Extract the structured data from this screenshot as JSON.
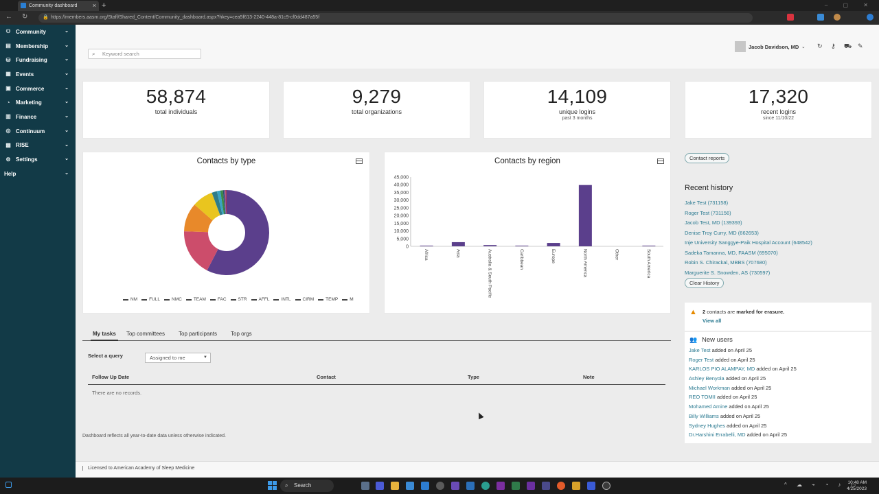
{
  "browser": {
    "tab_title": "Community dashboard",
    "url": "https://members.aasm.org/Staff/Shared_Content/Community_dashboard.aspx?hkey=cea5f613-2240-448a-81c9-cf0dd487a55f"
  },
  "sidebar": {
    "items": [
      {
        "label": "Community",
        "icon": "community-icon"
      },
      {
        "label": "Membership",
        "icon": "membership-icon"
      },
      {
        "label": "Fundraising",
        "icon": "fundraising-icon"
      },
      {
        "label": "Events",
        "icon": "events-icon"
      },
      {
        "label": "Commerce",
        "icon": "commerce-icon"
      },
      {
        "label": "Marketing",
        "icon": "marketing-icon"
      },
      {
        "label": "Finance",
        "icon": "finance-icon"
      },
      {
        "label": "Continuum",
        "icon": "continuum-icon"
      },
      {
        "label": "RISE",
        "icon": "rise-icon"
      },
      {
        "label": "Settings",
        "icon": "settings-icon"
      },
      {
        "label": "Help",
        "icon": ""
      }
    ]
  },
  "header": {
    "search_placeholder": "Keyword search",
    "user_name": "Jacob Davidson, MD"
  },
  "stats": [
    {
      "value": "58,874",
      "label": "total individuals",
      "sub": ""
    },
    {
      "value": "9,279",
      "label": "total organizations",
      "sub": ""
    },
    {
      "value": "14,109",
      "label": "unique logins",
      "sub": "past 3 months"
    },
    {
      "value": "17,320",
      "label": "recent logins",
      "sub": "since 11/10/22"
    }
  ],
  "chart_data": [
    {
      "type": "pie",
      "title": "Contacts by type",
      "categories": [
        "NM",
        "FULL",
        "NMC",
        "TEAM",
        "FAC",
        "STR",
        "AFFL",
        "INTL",
        "CIRM",
        "TEMP",
        "M"
      ],
      "values": [
        58,
        18,
        11,
        8,
        2,
        1.3,
        1,
        0.5,
        0.4,
        0.3,
        0.2
      ],
      "colors": [
        "#5b3f8c",
        "#cc4d6b",
        "#e8892a",
        "#e9c51f",
        "#2f7c8a",
        "#3aa3c3",
        "#3a8a4a",
        "#2f4f6a",
        "#7a5ea8",
        "#b9365f",
        "#8b2a3c"
      ]
    },
    {
      "type": "bar",
      "title": "Contacts by region",
      "categories": [
        "Africa",
        "Asia",
        "Australia & South Pacific",
        "Caribbean",
        "Europe",
        "North America",
        "Other",
        "South America"
      ],
      "values": [
        150,
        2700,
        800,
        100,
        2200,
        39800,
        0,
        350
      ],
      "ylim": [
        0,
        45000
      ],
      "yticks": [
        "0",
        "5,000",
        "10,000",
        "15,000",
        "20,000",
        "25,000",
        "30,000",
        "35,000",
        "40,000",
        "45,000"
      ],
      "color": "#5b3f8c"
    }
  ],
  "right": {
    "contact_reports_label": "Contact reports",
    "recent_history_title": "Recent history",
    "recent_history": [
      "Jake Test (731158)",
      "Roger Test (731156)",
      "Jacob Test, MD (139393)",
      "Denise Troy Curry, MD (662653)",
      "Inje University Sanggye-Paik Hospital Account (648542)",
      "Sadeka Tamanna, MD, FAASM (695070)",
      "Robin S. Chirackal, MBBS (707680)",
      "Marguerite S. Snowden, AS (730597)"
    ],
    "clear_history_label": "Clear History",
    "erasure_count": "2",
    "erasure_mid": " contacts are ",
    "erasure_bold": "marked for erasure.",
    "view_all_label": "View all",
    "new_users_title": "New users",
    "new_users": [
      {
        "name": "Jake Test",
        "added": " added on April 25"
      },
      {
        "name": "Roger Test",
        "added": " added on April 25"
      },
      {
        "name": "KARLOS PIO ALAMPAY, MD",
        "added": " added on April 25"
      },
      {
        "name": "Ashley Benyola",
        "added": " added on April 25"
      },
      {
        "name": "Michael Workman",
        "added": " added on April 25"
      },
      {
        "name": "REO TOMII",
        "added": " added on April 25"
      },
      {
        "name": "Mohamed Amine",
        "added": " added on April 25"
      },
      {
        "name": "Billy Williams",
        "added": " added on April 25"
      },
      {
        "name": "Sydney Hughes",
        "added": " added on April 25"
      },
      {
        "name": "Dr.Harshini Errabelli, MD",
        "added": " added on April 25"
      }
    ]
  },
  "tasks": {
    "tabs": [
      "My tasks",
      "Top committees",
      "Top participants",
      "Top orgs"
    ],
    "query_label": "Select a query",
    "query_value": "Assigned to me",
    "columns": [
      "Follow Up Date",
      "Contact",
      "Type",
      "Note"
    ],
    "empty_text": "There are no records."
  },
  "note": "Dashboard reflects all year-to-date data unless otherwise indicated.",
  "footer": "Licensed to American Academy of Sleep Medicine",
  "taskbar": {
    "search_label": "Search",
    "time": "10:48 AM",
    "date": "4/25/2023"
  }
}
